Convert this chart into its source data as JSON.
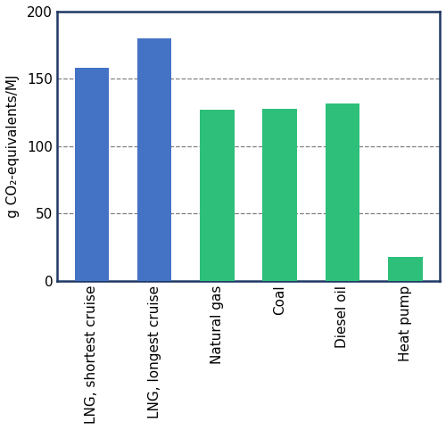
{
  "categories": [
    "LNG, shortest cruise",
    "LNG, longest cruise",
    "Natural gas",
    "Coal",
    "Diesel oil",
    "Heat pump"
  ],
  "values": [
    158,
    180,
    127,
    128,
    132,
    18
  ],
  "bar_colors": [
    "#4472C4",
    "#4472C4",
    "#2EBF7A",
    "#2EBF7A",
    "#2EBF7A",
    "#2EBF7A"
  ],
  "ylabel": "g CO₂-equivalents/MJ",
  "ylim": [
    0,
    200
  ],
  "yticks": [
    0,
    50,
    100,
    150,
    200
  ],
  "grid_ticks": [
    50,
    100,
    150
  ],
  "background_color": "#ffffff",
  "spine_color": "#1F3864",
  "bar_width": 0.55,
  "figsize": [
    5.0,
    4.82
  ],
  "dpi": 100,
  "tick_fontsize": 11,
  "ylabel_fontsize": 11
}
